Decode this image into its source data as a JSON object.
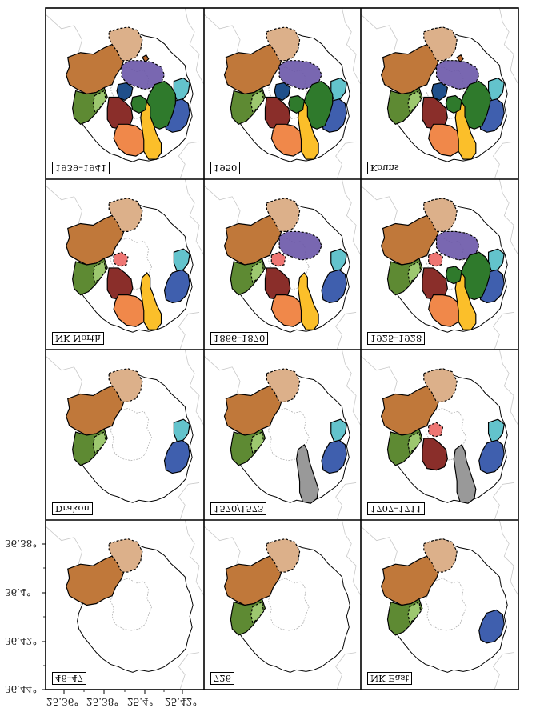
{
  "figure": {
    "panels": [
      {
        "label": "1939–1941",
        "shows": [
          "base_nw",
          "base_n",
          "base_w",
          "base_w2",
          "nk_east",
          "east_teal",
          "north_knob",
          "purple",
          "blue_dark",
          "green_dark",
          "red_dark",
          "orange",
          "yellow",
          "green_center"
        ]
      },
      {
        "label": "1950",
        "shows": [
          "base_nw",
          "base_n",
          "base_w",
          "base_w2",
          "nk_east",
          "east_teal",
          "purple",
          "blue_dark",
          "green_dark",
          "red_dark",
          "orange",
          "yellow",
          "green_center"
        ]
      },
      {
        "label": "Kouns",
        "shows": [
          "base_nw",
          "base_n",
          "base_w",
          "base_w2",
          "nk_east",
          "east_teal",
          "north_knob",
          "purple",
          "blue_dark",
          "green_dark",
          "red_dark",
          "orange",
          "yellow",
          "green_center"
        ]
      },
      {
        "label": "NK North",
        "shows": [
          "base_nw",
          "base_n",
          "base_w",
          "base_w2",
          "nk_east",
          "east_teal",
          "red_light",
          "red_dark",
          "orange",
          "yellow"
        ]
      },
      {
        "label": "1866–1870",
        "shows": [
          "base_nw",
          "base_n",
          "base_w",
          "base_w2",
          "nk_east",
          "east_teal",
          "purple",
          "red_light",
          "red_dark",
          "orange",
          "yellow"
        ]
      },
      {
        "label": "1925–1928",
        "shows": [
          "base_nw",
          "base_n",
          "base_w",
          "base_w2",
          "nk_east",
          "east_teal",
          "purple",
          "red_light",
          "red_dark",
          "orange",
          "yellow",
          "green_dark",
          "green_center"
        ]
      },
      {
        "label": "Drakon",
        "shows": [
          "base_nw",
          "base_n",
          "base_w",
          "base_w2",
          "nk_east",
          "east_teal"
        ]
      },
      {
        "label": "1570/1573",
        "shows": [
          "base_nw",
          "base_n",
          "base_w",
          "base_w2",
          "nk_east",
          "east_teal",
          "yellow_only"
        ]
      },
      {
        "label": "1707–1711",
        "shows": [
          "base_nw",
          "base_n",
          "base_w",
          "base_w2",
          "nk_east",
          "east_teal",
          "red_light",
          "red_dark",
          "yellow_only"
        ]
      },
      {
        "label": "46–47",
        "shows": [
          "base_nw",
          "base_n"
        ]
      },
      {
        "label": "726",
        "shows": [
          "base_nw",
          "base_n",
          "base_w",
          "base_w2"
        ]
      },
      {
        "label": "NK East",
        "shows": [
          "base_nw",
          "base_n",
          "base_w",
          "base_w2",
          "nk_east"
        ]
      }
    ],
    "y_ticks": [
      "36.38°",
      "36.4°",
      "36.42°",
      "36.44°"
    ],
    "x_ticks": [
      "25.36°",
      "25.38°",
      "25.4°",
      "25.42°"
    ],
    "colors": {
      "base_nw": "#c0783a",
      "base_n": "#dcb08a",
      "base_w": "#5e8a33",
      "base_w2": "#9dc86f",
      "nk_east": "#3f5fae",
      "east_teal": "#63c3cc",
      "north_knob": "#b5652a",
      "purple": "#6a57a8",
      "purple_light": "#8f7fc8",
      "blue_dark": "#1f4f8a",
      "green_dark": "#2f7a2c",
      "red_dark": "#8a2e2a",
      "red_light": "#ee7673",
      "orange": "#f0884a",
      "yellow": "#fbbf2a",
      "green_center": "#2f7a2c",
      "island_outline": "#000000",
      "inner_outline": "#b0b0b0",
      "background_line": "#c8c8c8"
    }
  }
}
